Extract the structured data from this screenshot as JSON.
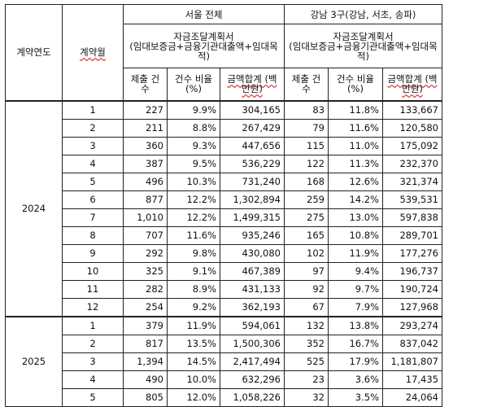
{
  "headers": {
    "year": "계약연도",
    "month": "계약월",
    "seoul": "서울 전체",
    "gangnam": "강남 3구(강남, 서초, 송파)",
    "plan_title": "자금조달계획서",
    "plan_desc": "(임대보증금+금융기관대출액+임대목적)",
    "count": "제출 건수",
    "ratio": "건수 비율 (%)",
    "sum": "금액합계 (백만원)"
  },
  "groups": [
    {
      "year": "2024",
      "rows": [
        {
          "month": "1",
          "s_cnt": "227",
          "s_ratio": "9.9%",
          "s_sum": "304,165",
          "g_cnt": "83",
          "g_ratio": "11.8%",
          "g_sum": "133,667"
        },
        {
          "month": "2",
          "s_cnt": "211",
          "s_ratio": "8.8%",
          "s_sum": "267,429",
          "g_cnt": "79",
          "g_ratio": "11.6%",
          "g_sum": "120,580"
        },
        {
          "month": "3",
          "s_cnt": "360",
          "s_ratio": "9.3%",
          "s_sum": "447,656",
          "g_cnt": "115",
          "g_ratio": "11.0%",
          "g_sum": "175,092"
        },
        {
          "month": "4",
          "s_cnt": "387",
          "s_ratio": "9.5%",
          "s_sum": "536,229",
          "g_cnt": "122",
          "g_ratio": "11.3%",
          "g_sum": "232,370"
        },
        {
          "month": "5",
          "s_cnt": "496",
          "s_ratio": "10.3%",
          "s_sum": "731,240",
          "g_cnt": "168",
          "g_ratio": "12.6%",
          "g_sum": "321,374"
        },
        {
          "month": "6",
          "s_cnt": "877",
          "s_ratio": "12.2%",
          "s_sum": "1,302,894",
          "g_cnt": "259",
          "g_ratio": "14.2%",
          "g_sum": "539,531"
        },
        {
          "month": "7",
          "s_cnt": "1,010",
          "s_ratio": "12.2%",
          "s_sum": "1,499,315",
          "g_cnt": "275",
          "g_ratio": "13.0%",
          "g_sum": "597,838"
        },
        {
          "month": "8",
          "s_cnt": "707",
          "s_ratio": "11.6%",
          "s_sum": "935,246",
          "g_cnt": "165",
          "g_ratio": "10.8%",
          "g_sum": "289,701"
        },
        {
          "month": "9",
          "s_cnt": "292",
          "s_ratio": "9.8%",
          "s_sum": "430,080",
          "g_cnt": "102",
          "g_ratio": "11.9%",
          "g_sum": "177,276"
        },
        {
          "month": "10",
          "s_cnt": "325",
          "s_ratio": "9.1%",
          "s_sum": "467,389",
          "g_cnt": "97",
          "g_ratio": "9.4%",
          "g_sum": "196,737"
        },
        {
          "month": "11",
          "s_cnt": "282",
          "s_ratio": "8.9%",
          "s_sum": "431,133",
          "g_cnt": "92",
          "g_ratio": "9.7%",
          "g_sum": "190,724"
        },
        {
          "month": "12",
          "s_cnt": "254",
          "s_ratio": "9.2%",
          "s_sum": "362,193",
          "g_cnt": "67",
          "g_ratio": "7.9%",
          "g_sum": "127,968"
        }
      ]
    },
    {
      "year": "2025",
      "rows": [
        {
          "month": "1",
          "s_cnt": "379",
          "s_ratio": "11.9%",
          "s_sum": "594,061",
          "g_cnt": "132",
          "g_ratio": "13.8%",
          "g_sum": "293,274"
        },
        {
          "month": "2",
          "s_cnt": "817",
          "s_ratio": "13.5%",
          "s_sum": "1,500,306",
          "g_cnt": "352",
          "g_ratio": "16.7%",
          "g_sum": "837,042"
        },
        {
          "month": "3",
          "s_cnt": "1,394",
          "s_ratio": "14.5%",
          "s_sum": "2,417,494",
          "g_cnt": "525",
          "g_ratio": "17.9%",
          "g_sum": "1,181,807"
        },
        {
          "month": "4",
          "s_cnt": "490",
          "s_ratio": "10.0%",
          "s_sum": "632,296",
          "g_cnt": "23",
          "g_ratio": "3.6%",
          "g_sum": "17,435"
        },
        {
          "month": "5",
          "s_cnt": "805",
          "s_ratio": "12.0%",
          "s_sum": "1,058,226",
          "g_cnt": "32",
          "g_ratio": "3.5%",
          "g_sum": "24,064"
        }
      ]
    }
  ]
}
